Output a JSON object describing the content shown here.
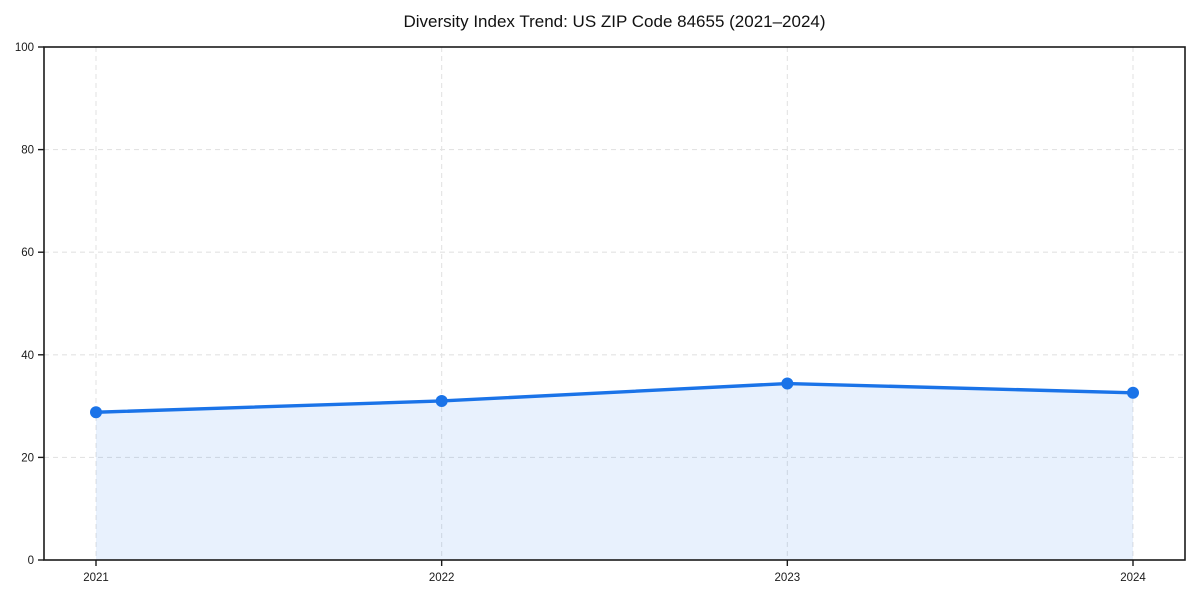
{
  "chart_data": {
    "type": "area",
    "title": "Diversity Index Trend: US ZIP Code 84655 (2021–2024)",
    "xlabel": "",
    "ylabel": "",
    "categories": [
      "2021",
      "2022",
      "2023",
      "2024"
    ],
    "values": [
      28.8,
      31.0,
      34.4,
      32.6
    ],
    "ylim": [
      0,
      100
    ],
    "yticks": [
      0,
      20,
      40,
      60,
      80,
      100
    ],
    "grid": true,
    "legend": "none",
    "colors": {
      "line": "#1a73e8",
      "marker": "#1a73e8",
      "fill": "#1a73e8",
      "fill_opacity": "0.10",
      "grid": "#e3e3e3",
      "frame": "#1a1a1a",
      "tick": "#1a1a1a",
      "text": "#1a1a1a",
      "background": "#ffffff"
    }
  }
}
